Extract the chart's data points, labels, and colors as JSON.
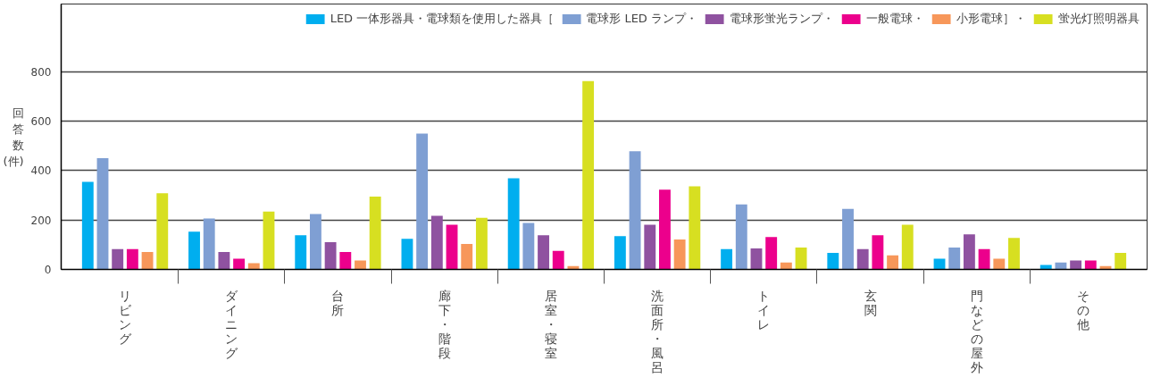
{
  "chart_data": {
    "type": "bar",
    "ylabel": "回答数(件)",
    "categories": [
      "リビング",
      "ダイニング",
      "台所",
      "廊下・階段",
      "居室・寝室",
      "洗面所・風呂",
      "トイレ",
      "玄関",
      "門などの屋外",
      "その他"
    ],
    "series": [
      {
        "name": "LED 一体形器具・電球類を使用した器具［",
        "color": "#00aeef",
        "values": [
          355,
          153,
          138,
          124,
          369,
          135,
          82,
          67,
          43,
          18
        ]
      },
      {
        "name": "電球形 LED ランプ・",
        "color": "#7f9fd3",
        "values": [
          451,
          206,
          224,
          550,
          188,
          479,
          263,
          245,
          89,
          28
        ]
      },
      {
        "name": "電球形蛍光ランプ・",
        "color": "#8f52a0",
        "values": [
          82,
          71,
          110,
          217,
          138,
          181,
          85,
          82,
          142,
          36
        ]
      },
      {
        "name": "一般電球・",
        "color": "#ec008c",
        "values": [
          82,
          43,
          71,
          181,
          75,
          323,
          131,
          138,
          82,
          36
        ]
      },
      {
        "name": "小形電球］・",
        "color": "#f7975a",
        "values": [
          71,
          25,
          36,
          103,
          14,
          121,
          28,
          57,
          43,
          14
        ]
      },
      {
        "name": "蛍光灯照明器具",
        "color": "#d7df21",
        "values": [
          309,
          234,
          295,
          209,
          763,
          337,
          89,
          181,
          128,
          67
        ]
      }
    ],
    "ylim": [
      0,
      1075
    ],
    "yticks": [
      0,
      200,
      400,
      600,
      800
    ],
    "grid": "y",
    "legend": "top right"
  }
}
